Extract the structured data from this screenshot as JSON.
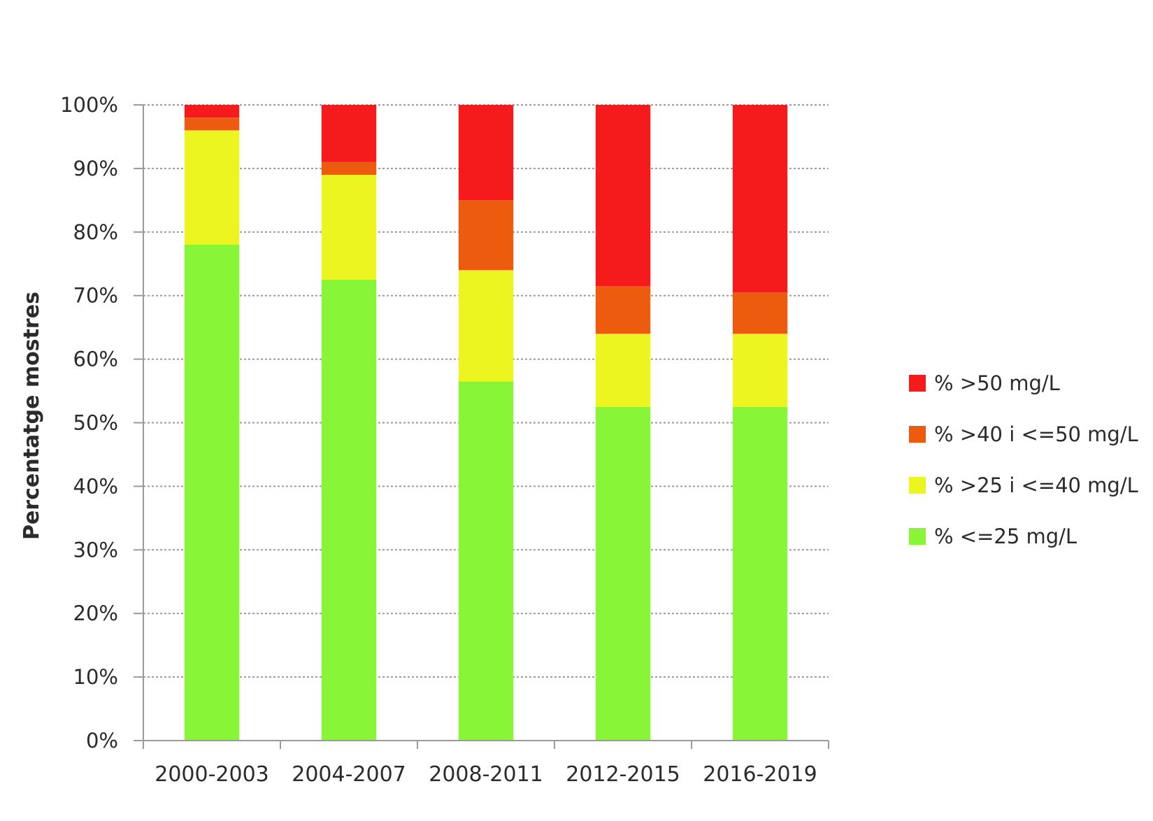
{
  "chart_data": {
    "type": "bar",
    "stacked": true,
    "ylabel": "Percentatge mostres",
    "xlabel": "",
    "ylim": [
      0,
      100
    ],
    "y_ticks": [
      "0%",
      "10%",
      "20%",
      "30%",
      "40%",
      "50%",
      "60%",
      "70%",
      "80%",
      "90%",
      "100%"
    ],
    "grid": true,
    "legend_position": "right",
    "categories": [
      "2000-2003",
      "2004-2007",
      "2008-2011",
      "2012-2015",
      "2016-2019"
    ],
    "series": [
      {
        "name": "% <=25 mg/L",
        "color": "#88f537",
        "values": [
          78,
          72.5,
          56.5,
          52.5,
          52.5
        ]
      },
      {
        "name": "% >25 i <=40 mg/L",
        "color": "#ecf51f",
        "values": [
          18,
          16.5,
          17.5,
          11.5,
          11.5
        ]
      },
      {
        "name": "% >40 i <=50 mg/L",
        "color": "#ed5c0e",
        "values": [
          2,
          2,
          11,
          7.5,
          6.5
        ]
      },
      {
        "name": "% >50 mg/L",
        "color": "#f51a1b",
        "values": [
          2,
          9,
          15,
          28.5,
          29.5
        ]
      }
    ],
    "legend_order": [
      "% >50 mg/L",
      "% >40 i <=50 mg/L",
      "% >25 i <=40 mg/L",
      "% <=25 mg/L"
    ]
  }
}
